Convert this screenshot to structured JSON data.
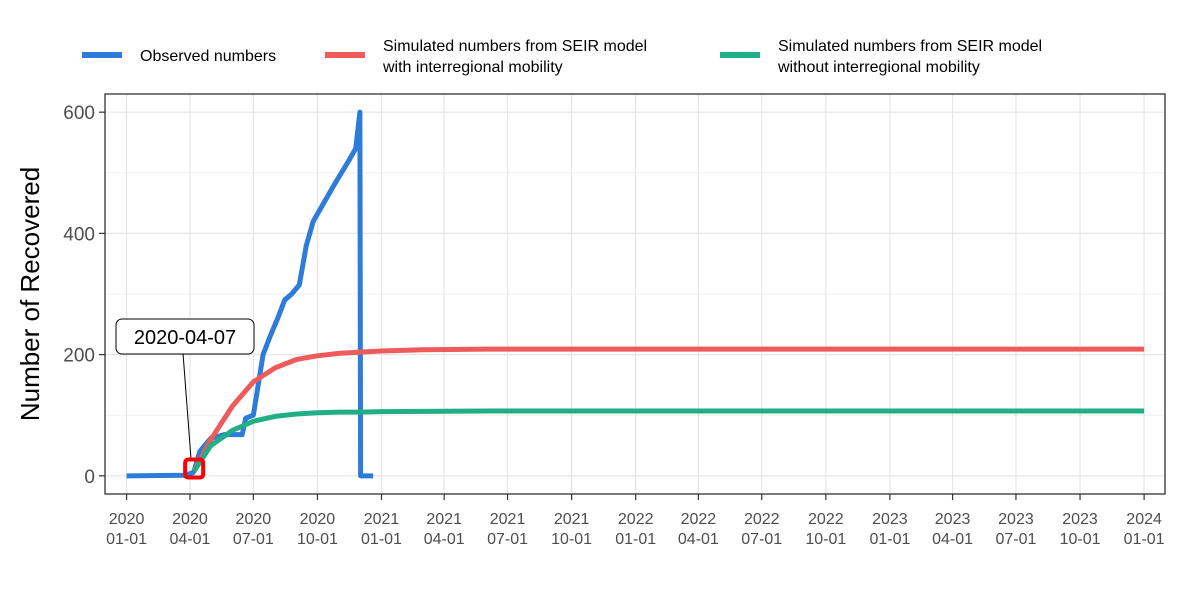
{
  "chart_data": {
    "type": "line",
    "ylabel": "Number of Recovered",
    "xlabel": "",
    "ylim": [
      -30,
      630
    ],
    "xlim": [
      "2019-12-01",
      "2024-01-31"
    ],
    "grid": true,
    "legend_position": "top",
    "y_ticks": [
      0,
      200,
      400,
      600
    ],
    "x_ticks": [
      {
        "date": "2020-01-01",
        "label": [
          "2020",
          "01-01"
        ]
      },
      {
        "date": "2020-04-01",
        "label": [
          "2020",
          "04-01"
        ]
      },
      {
        "date": "2020-07-01",
        "label": [
          "2020",
          "07-01"
        ]
      },
      {
        "date": "2020-10-01",
        "label": [
          "2020",
          "10-01"
        ]
      },
      {
        "date": "2021-01-01",
        "label": [
          "2021",
          "01-01"
        ]
      },
      {
        "date": "2021-04-01",
        "label": [
          "2021",
          "04-01"
        ]
      },
      {
        "date": "2021-07-01",
        "label": [
          "2021",
          "07-01"
        ]
      },
      {
        "date": "2021-10-01",
        "label": [
          "2021",
          "10-01"
        ]
      },
      {
        "date": "2022-01-01",
        "label": [
          "2022",
          "01-01"
        ]
      },
      {
        "date": "2022-04-01",
        "label": [
          "2022",
          "04-01"
        ]
      },
      {
        "date": "2022-07-01",
        "label": [
          "2022",
          "07-01"
        ]
      },
      {
        "date": "2022-10-01",
        "label": [
          "2022",
          "10-01"
        ]
      },
      {
        "date": "2023-01-01",
        "label": [
          "2023",
          "01-01"
        ]
      },
      {
        "date": "2023-04-01",
        "label": [
          "2023",
          "04-01"
        ]
      },
      {
        "date": "2023-07-01",
        "label": [
          "2023",
          "07-01"
        ]
      },
      {
        "date": "2023-10-01",
        "label": [
          "2023",
          "10-01"
        ]
      },
      {
        "date": "2024-01-01",
        "label": [
          "2024",
          "01-01"
        ]
      }
    ],
    "series": [
      {
        "name": "Observed numbers",
        "color": "#2E7BD9",
        "points": [
          [
            "2020-01-01",
            0
          ],
          [
            "2020-03-25",
            1
          ],
          [
            "2020-04-05",
            5
          ],
          [
            "2020-04-07",
            8
          ],
          [
            "2020-04-15",
            40
          ],
          [
            "2020-05-01",
            62
          ],
          [
            "2020-05-20",
            68
          ],
          [
            "2020-06-15",
            68
          ],
          [
            "2020-06-20",
            95
          ],
          [
            "2020-07-01",
            100
          ],
          [
            "2020-07-08",
            150
          ],
          [
            "2020-07-15",
            200
          ],
          [
            "2020-07-25",
            230
          ],
          [
            "2020-08-05",
            260
          ],
          [
            "2020-08-15",
            290
          ],
          [
            "2020-08-25",
            300
          ],
          [
            "2020-09-05",
            315
          ],
          [
            "2020-09-15",
            380
          ],
          [
            "2020-09-25",
            420
          ],
          [
            "2020-10-10",
            450
          ],
          [
            "2020-10-25",
            480
          ],
          [
            "2020-11-15",
            520
          ],
          [
            "2020-11-25",
            540
          ],
          [
            "2020-12-01",
            600
          ],
          [
            "2020-12-02",
            0
          ],
          [
            "2020-12-20",
            0
          ]
        ]
      },
      {
        "name": "Simulated numbers from SEIR model\nwith interregional mobility",
        "color": "#EF5A5A",
        "points": [
          [
            "2020-04-07",
            8
          ],
          [
            "2020-05-01",
            60
          ],
          [
            "2020-06-01",
            115
          ],
          [
            "2020-07-01",
            155
          ],
          [
            "2020-08-01",
            178
          ],
          [
            "2020-09-01",
            192
          ],
          [
            "2020-10-01",
            198
          ],
          [
            "2020-11-01",
            202
          ],
          [
            "2020-12-01",
            204
          ],
          [
            "2021-01-01",
            206
          ],
          [
            "2021-03-01",
            208
          ],
          [
            "2021-06-01",
            209
          ],
          [
            "2022-01-01",
            209
          ],
          [
            "2023-01-01",
            209
          ],
          [
            "2024-01-01",
            209
          ]
        ]
      },
      {
        "name": "Simulated numbers from SEIR model\nwithout interregional mobility",
        "color": "#22AE85",
        "points": [
          [
            "2020-04-07",
            8
          ],
          [
            "2020-05-01",
            50
          ],
          [
            "2020-06-01",
            75
          ],
          [
            "2020-07-01",
            90
          ],
          [
            "2020-08-01",
            98
          ],
          [
            "2020-09-01",
            102
          ],
          [
            "2020-10-01",
            104
          ],
          [
            "2020-11-01",
            105
          ],
          [
            "2020-12-01",
            105
          ],
          [
            "2021-01-01",
            106
          ],
          [
            "2021-06-01",
            107
          ],
          [
            "2022-01-01",
            107
          ],
          [
            "2023-01-01",
            107
          ],
          [
            "2024-01-01",
            107
          ]
        ]
      }
    ],
    "annotation": {
      "text": "2020-04-07",
      "date": "2020-04-07",
      "value": 12,
      "marker_color": "#FF0000"
    }
  }
}
